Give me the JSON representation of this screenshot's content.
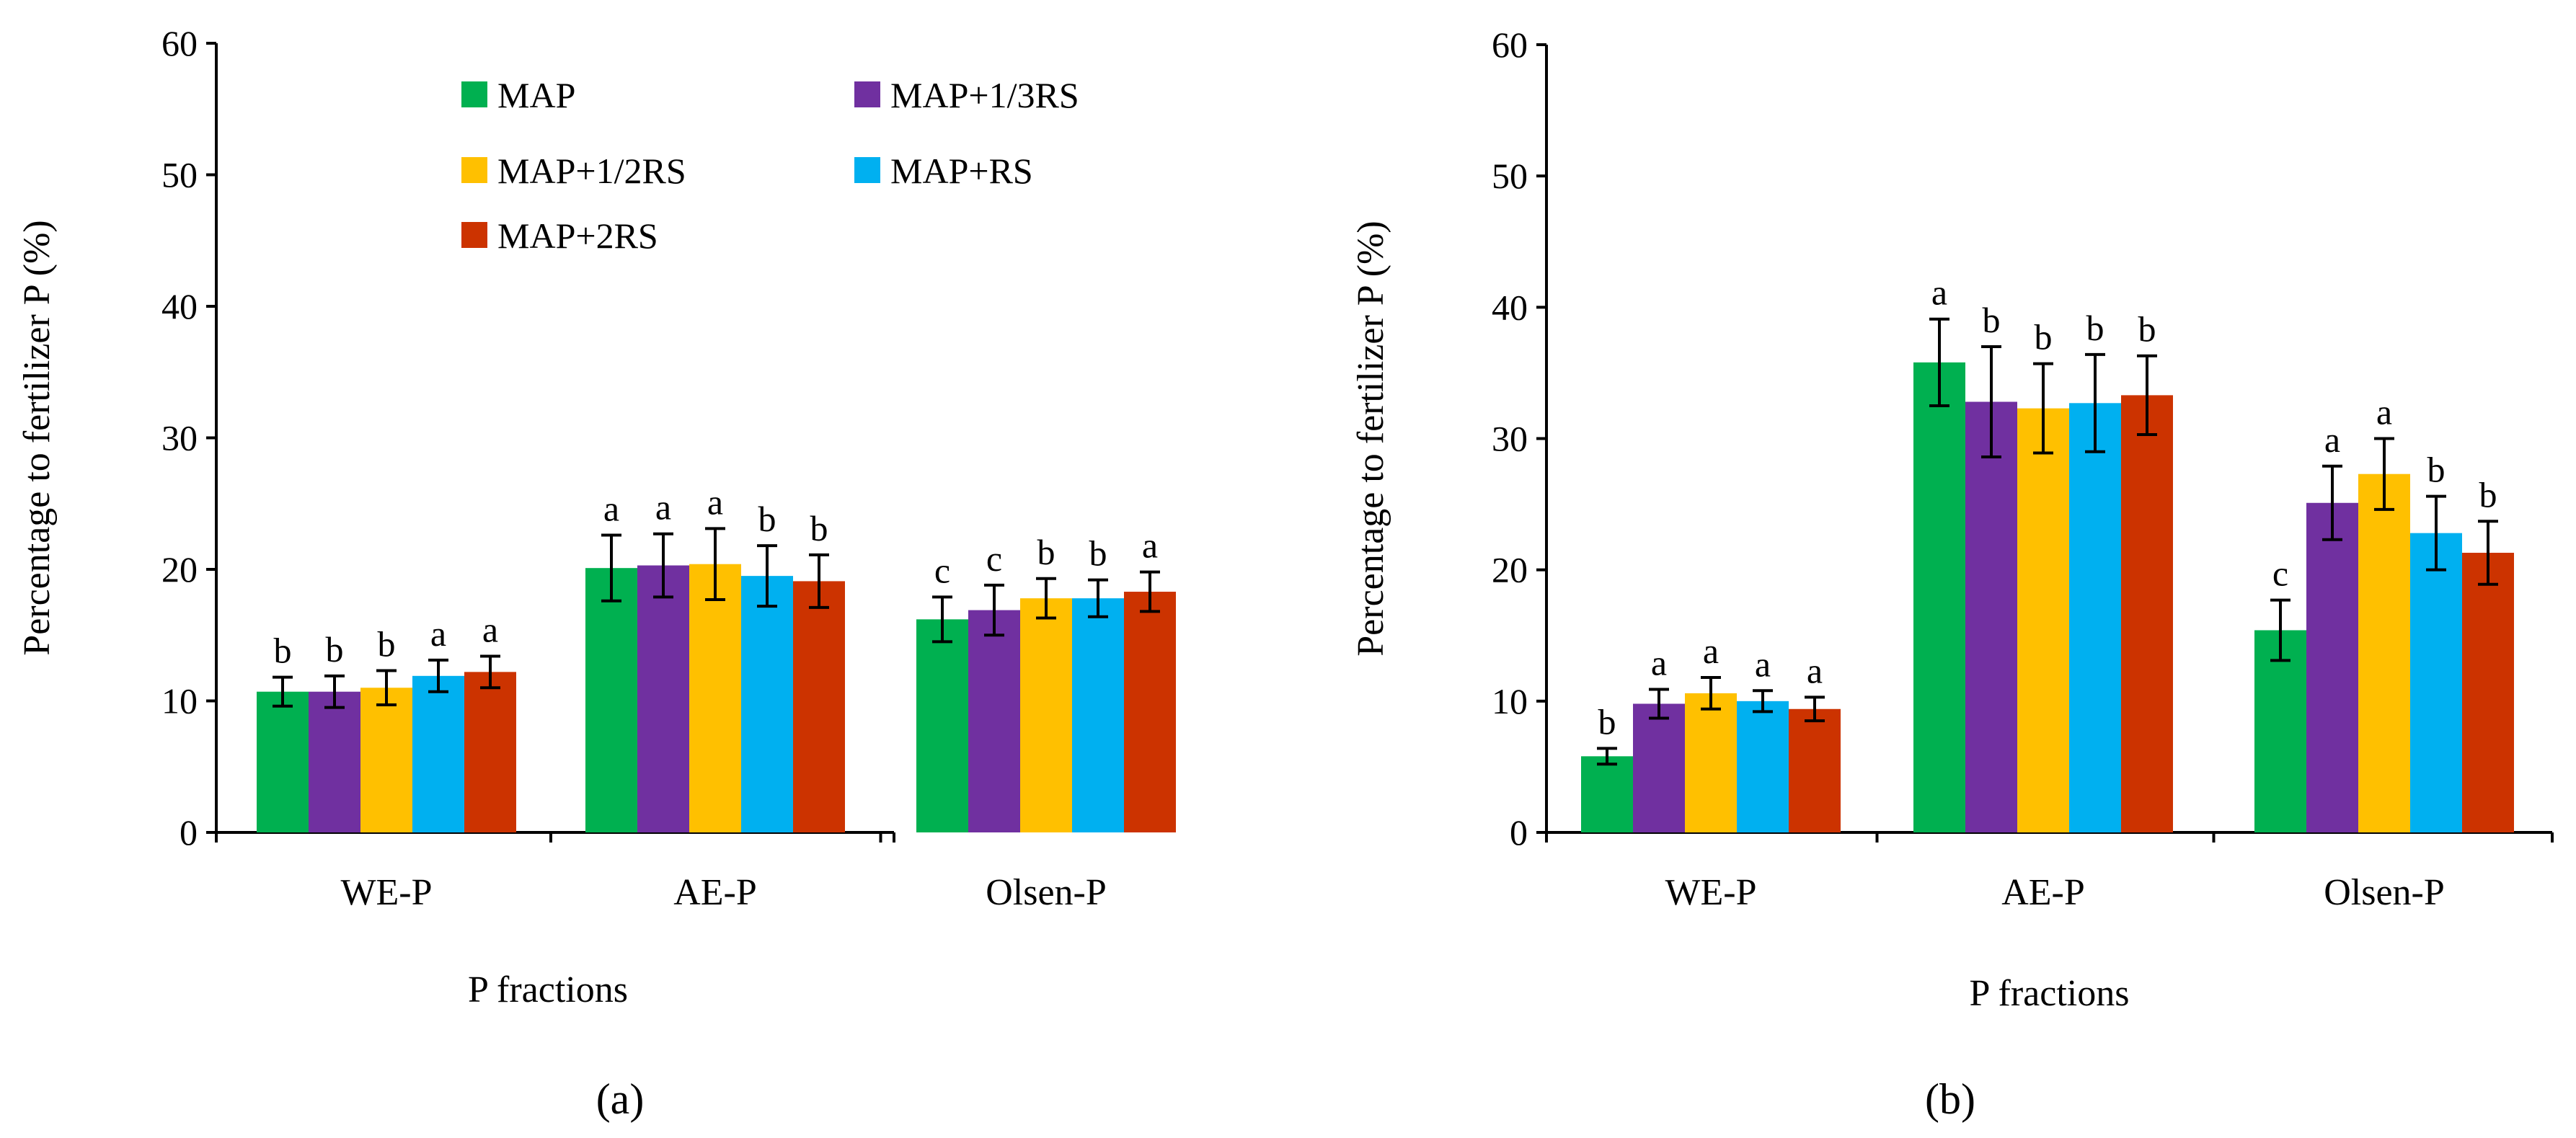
{
  "chart_data": [
    {
      "type": "bar",
      "panel_label": "(a)",
      "xlabel": "P fractions",
      "ylabel": "Percentage to fertilizer P (%)",
      "ylim": [
        0,
        60
      ],
      "yticks": [
        0,
        10,
        20,
        30,
        40,
        50,
        60
      ],
      "categories": [
        "WE-P",
        "AE-P",
        "Olsen-P"
      ],
      "legend_position": "top",
      "series": [
        {
          "name": "MAP",
          "color": "#00b050",
          "values": [
            10.7,
            20.1,
            16.2
          ],
          "errors": [
            1.1,
            2.5,
            1.7
          ],
          "letters": [
            "b",
            "a",
            "c"
          ]
        },
        {
          "name": "MAP+1/3RS",
          "color": "#7030a0",
          "values": [
            10.7,
            20.3,
            16.9
          ],
          "errors": [
            1.2,
            2.4,
            1.9
          ],
          "letters": [
            "b",
            "a",
            "c"
          ]
        },
        {
          "name": "MAP+1/2RS",
          "color": "#ffc000",
          "values": [
            11.0,
            20.4,
            17.8
          ],
          "errors": [
            1.3,
            2.7,
            1.5
          ],
          "letters": [
            "b",
            "a",
            "b"
          ]
        },
        {
          "name": "MAP+RS",
          "color": "#00b0f0",
          "values": [
            11.9,
            19.5,
            17.8
          ],
          "errors": [
            1.2,
            2.3,
            1.4
          ],
          "letters": [
            "a",
            "b",
            "b"
          ]
        },
        {
          "name": "MAP+2RS",
          "color": "#cc3300",
          "values": [
            12.2,
            19.1,
            18.3
          ],
          "errors": [
            1.2,
            2.0,
            1.5
          ],
          "letters": [
            "a",
            "b",
            "a"
          ]
        }
      ]
    },
    {
      "type": "bar",
      "panel_label": "(b)",
      "xlabel": "P fractions",
      "ylabel": "Percentage to fertilizer P (%)",
      "ylim": [
        0,
        60
      ],
      "yticks": [
        0,
        10,
        20,
        30,
        40,
        50,
        60
      ],
      "categories": [
        "WE-P",
        "AE-P",
        "Olsen-P"
      ],
      "series": [
        {
          "name": "MAP",
          "color": "#00b050",
          "values": [
            5.8,
            35.8,
            15.4
          ],
          "errors": [
            0.6,
            3.3,
            2.3
          ],
          "letters": [
            "b",
            "a",
            "c"
          ]
        },
        {
          "name": "MAP+1/3RS",
          "color": "#7030a0",
          "values": [
            9.8,
            32.8,
            25.1
          ],
          "errors": [
            1.1,
            4.2,
            2.8
          ],
          "letters": [
            "a",
            "b",
            "a"
          ]
        },
        {
          "name": "MAP+1/2RS",
          "color": "#ffc000",
          "values": [
            10.6,
            32.3,
            27.3
          ],
          "errors": [
            1.2,
            3.4,
            2.7
          ],
          "letters": [
            "a",
            "b",
            "a"
          ]
        },
        {
          "name": "MAP+RS",
          "color": "#00b0f0",
          "values": [
            10.0,
            32.7,
            22.8
          ],
          "errors": [
            0.8,
            3.7,
            2.8
          ],
          "letters": [
            "a",
            "b",
            "b"
          ]
        },
        {
          "name": "MAP+2RS",
          "color": "#cc3300",
          "values": [
            9.4,
            33.3,
            21.3
          ],
          "errors": [
            0.9,
            3.0,
            2.4
          ],
          "letters": [
            "a",
            "b",
            "b"
          ]
        }
      ]
    }
  ]
}
